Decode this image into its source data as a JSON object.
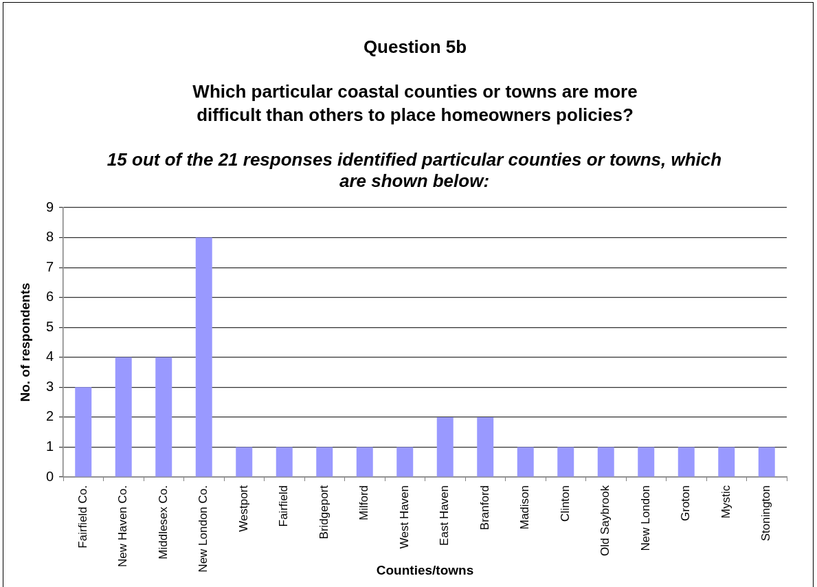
{
  "chart_data": {
    "type": "bar",
    "title": "Question 5b",
    "subtitle": "Which particular coastal counties or towns are more difficult than others to place homeowners policies?",
    "annotations": [
      "15 out of the 21 responses identified particular counties or towns, which are shown below:"
    ],
    "xlabel": "Counties/towns",
    "ylabel": "No. of respondents",
    "categories": [
      "Fairfield Co.",
      "New Haven Co.",
      "Middlesex Co.",
      "New London Co.",
      "Westport",
      "Fairfield",
      "Bridgeport",
      "Milford",
      "West Haven",
      "East Haven",
      "Branford",
      "Madison",
      "Clinton",
      "Old Saybrook",
      "New London",
      "Groton",
      "Mystic",
      "Stonington"
    ],
    "values": [
      3,
      4,
      4,
      8,
      1,
      1,
      1,
      1,
      1,
      2,
      2,
      1,
      1,
      1,
      1,
      1,
      1,
      1
    ],
    "color": "#9999ff",
    "ylim": [
      0,
      9
    ],
    "yticks": [
      0,
      1,
      2,
      3,
      4,
      5,
      6,
      7,
      8,
      9
    ],
    "grid": "y"
  }
}
